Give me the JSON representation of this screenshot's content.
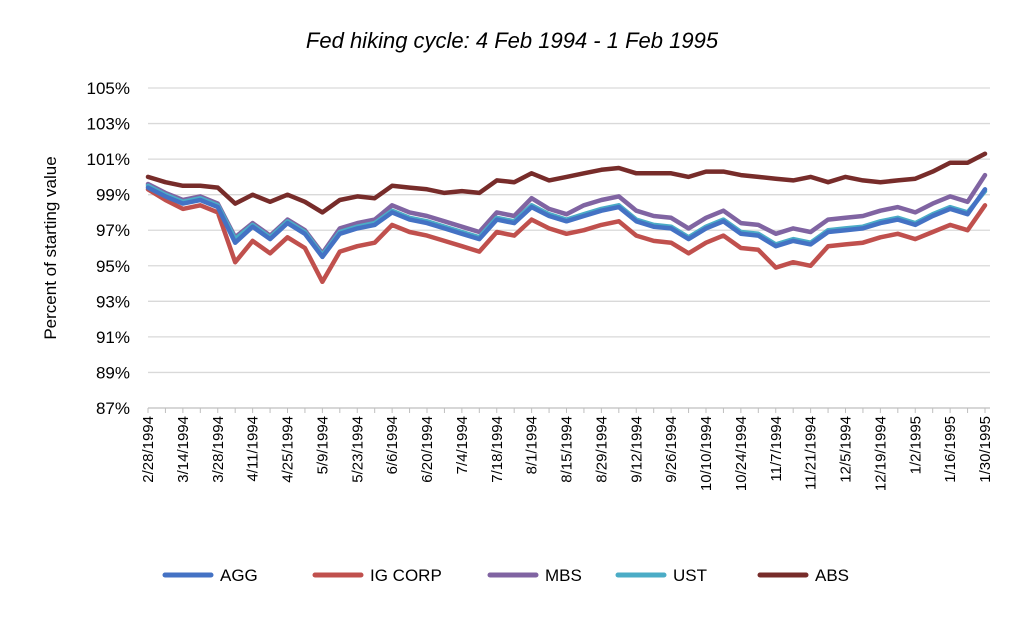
{
  "chart_data": {
    "type": "line",
    "title": "Fed hiking cycle: 4 Feb 1994 - 1 Feb 1995",
    "xlabel": "",
    "ylabel": "Percent of starting value",
    "ylim": [
      87,
      105
    ],
    "yticks": [
      "87%",
      "89%",
      "91%",
      "93%",
      "95%",
      "97%",
      "99%",
      "101%",
      "103%",
      "105%"
    ],
    "grid": true,
    "legend_position": "bottom",
    "x": [
      "2/28/1994",
      "3/7/1994",
      "3/14/1994",
      "3/21/1994",
      "3/28/1994",
      "4/4/1994",
      "4/11/1994",
      "4/18/1994",
      "4/25/1994",
      "5/2/1994",
      "5/9/1994",
      "5/16/1994",
      "5/23/1994",
      "5/30/1994",
      "6/6/1994",
      "6/13/1994",
      "6/20/1994",
      "6/27/1994",
      "7/4/1994",
      "7/11/1994",
      "7/18/1994",
      "7/25/1994",
      "8/1/1994",
      "8/8/1994",
      "8/15/1994",
      "8/22/1994",
      "8/29/1994",
      "9/5/1994",
      "9/12/1994",
      "9/19/1994",
      "9/26/1994",
      "10/3/1994",
      "10/10/1994",
      "10/17/1994",
      "10/24/1994",
      "10/31/1994",
      "11/7/1994",
      "11/14/1994",
      "11/21/1994",
      "11/28/1994",
      "12/5/1994",
      "12/12/1994",
      "12/19/1994",
      "12/26/1994",
      "1/2/1995",
      "1/9/1995",
      "1/16/1995",
      "1/23/1995",
      "1/30/1995"
    ],
    "xtick_labels": [
      "2/28/1994",
      "3/14/1994",
      "3/28/1994",
      "4/11/1994",
      "4/25/1994",
      "5/9/1994",
      "5/23/1994",
      "6/6/1994",
      "6/20/1994",
      "7/4/1994",
      "7/18/1994",
      "8/1/1994",
      "8/15/1994",
      "8/29/1994",
      "9/12/1994",
      "9/26/1994",
      "10/10/1994",
      "10/24/1994",
      "11/7/1994",
      "11/21/1994",
      "12/5/1994",
      "12/19/1994",
      "1/2/1995",
      "1/16/1995",
      "1/30/1995"
    ],
    "series": [
      {
        "name": "AGG",
        "color": "#4472C4",
        "values": [
          99.4,
          98.9,
          98.5,
          98.7,
          98.3,
          96.3,
          97.2,
          96.5,
          97.4,
          96.8,
          95.5,
          96.8,
          97.1,
          97.3,
          98.0,
          97.6,
          97.4,
          97.1,
          96.8,
          96.5,
          97.6,
          97.4,
          98.3,
          97.8,
          97.5,
          97.8,
          98.1,
          98.3,
          97.5,
          97.2,
          97.1,
          96.5,
          97.1,
          97.5,
          96.8,
          96.7,
          96.1,
          96.4,
          96.2,
          96.9,
          97.0,
          97.1,
          97.4,
          97.6,
          97.3,
          97.8,
          98.2,
          97.9,
          99.3
        ]
      },
      {
        "name": "IG CORP",
        "color": "#C0504D",
        "values": [
          99.3,
          98.7,
          98.2,
          98.4,
          98.0,
          95.2,
          96.4,
          95.7,
          96.6,
          96.0,
          94.1,
          95.8,
          96.1,
          96.3,
          97.3,
          96.9,
          96.7,
          96.4,
          96.1,
          95.8,
          96.9,
          96.7,
          97.6,
          97.1,
          96.8,
          97.0,
          97.3,
          97.5,
          96.7,
          96.4,
          96.3,
          95.7,
          96.3,
          96.7,
          96.0,
          95.9,
          94.9,
          95.2,
          95.0,
          96.1,
          96.2,
          96.3,
          96.6,
          96.8,
          96.5,
          96.9,
          97.3,
          97.0,
          98.4
        ]
      },
      {
        "name": "MBS",
        "color": "#8064A2",
        "values": [
          99.6,
          99.1,
          98.7,
          98.9,
          98.5,
          96.6,
          97.4,
          96.7,
          97.6,
          97.0,
          95.7,
          97.1,
          97.4,
          97.6,
          98.4,
          98.0,
          97.8,
          97.5,
          97.2,
          96.9,
          98.0,
          97.8,
          98.8,
          98.2,
          97.9,
          98.4,
          98.7,
          98.9,
          98.1,
          97.8,
          97.7,
          97.1,
          97.7,
          98.1,
          97.4,
          97.3,
          96.8,
          97.1,
          96.9,
          97.6,
          97.7,
          97.8,
          98.1,
          98.3,
          98.0,
          98.5,
          98.9,
          98.6,
          100.1
        ]
      },
      {
        "name": "UST",
        "color": "#4BACC6",
        "values": [
          99.5,
          99.0,
          98.6,
          98.8,
          98.4,
          96.5,
          97.3,
          96.6,
          97.5,
          96.9,
          95.6,
          96.9,
          97.2,
          97.4,
          98.1,
          97.7,
          97.5,
          97.2,
          96.9,
          96.6,
          97.7,
          97.5,
          98.4,
          97.9,
          97.6,
          97.9,
          98.2,
          98.4,
          97.6,
          97.3,
          97.2,
          96.6,
          97.2,
          97.6,
          96.9,
          96.8,
          96.2,
          96.5,
          96.3,
          97.0,
          97.1,
          97.2,
          97.5,
          97.7,
          97.4,
          97.9,
          98.3,
          98.0,
          99.2
        ]
      },
      {
        "name": "ABS",
        "color": "#772C2A",
        "values": [
          100.0,
          99.7,
          99.5,
          99.5,
          99.4,
          98.5,
          99.0,
          98.6,
          99.0,
          98.6,
          98.0,
          98.7,
          98.9,
          98.8,
          99.5,
          99.4,
          99.3,
          99.1,
          99.2,
          99.1,
          99.8,
          99.7,
          100.2,
          99.8,
          100.0,
          100.2,
          100.4,
          100.5,
          100.2,
          100.2,
          100.2,
          100.0,
          100.3,
          100.3,
          100.1,
          100.0,
          99.9,
          99.8,
          100.0,
          99.7,
          100.0,
          99.8,
          99.7,
          99.8,
          99.9,
          100.3,
          100.8,
          100.8,
          101.3
        ]
      }
    ]
  }
}
